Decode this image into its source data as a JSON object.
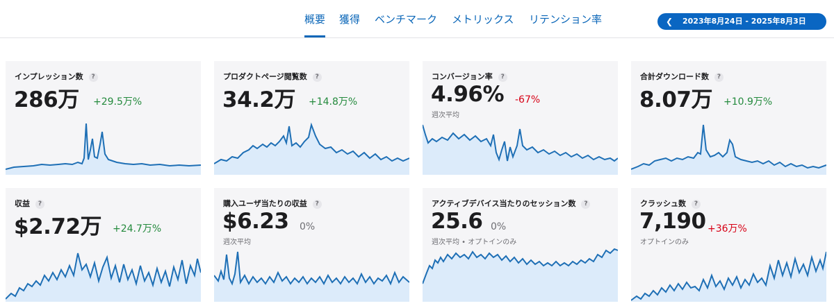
{
  "nav": {
    "tabs": [
      "概要",
      "獲得",
      "ベンチマーク",
      "メトリックス",
      "リテンション率"
    ],
    "active_tab": 0,
    "date_range": "2023年8月24日 - 2025年8月3日"
  },
  "cards": [
    {
      "title": "インプレッション数",
      "value": "286万",
      "change": "+29.5万%",
      "change_dir": "up",
      "sub": ""
    },
    {
      "title": "プロダクトページ閲覧数",
      "value": "34.2万",
      "change": "+14.8万%",
      "change_dir": "up",
      "sub": ""
    },
    {
      "title": "コンバージョン率",
      "value": "4.96%",
      "change": "-67%",
      "change_dir": "down",
      "sub": "週次平均"
    },
    {
      "title": "合計ダウンロード数",
      "value": "8.07万",
      "change": "+10.9万%",
      "change_dir": "up",
      "sub": ""
    },
    {
      "title": "収益",
      "value": "$2.72万",
      "change": "+24.7万%",
      "change_dir": "up",
      "sub": ""
    },
    {
      "title": "購入ユーザ当たりの収益",
      "value": "$6.23",
      "change": "0%",
      "change_dir": "flat",
      "sub": "週次平均"
    },
    {
      "title": "アクティブデバイス当たりのセッション数",
      "value": "25.6",
      "change": "0%",
      "change_dir": "flat",
      "sub": "週次平均 • オプトインのみ"
    },
    {
      "title": "クラッシュ数",
      "value": "7,190",
      "change": "+36万%",
      "change_dir": "down",
      "sub": "オプトインのみ"
    }
  ],
  "help_glyph": "?",
  "colors": {
    "accent": "#0a66c2",
    "line": "#1e6fb5",
    "fill": "#dcebfa",
    "up": "#248a3d",
    "down": "#d70015"
  },
  "icons": {
    "date_prev": "chevron-left-icon",
    "help": "question-mark-icon"
  }
}
